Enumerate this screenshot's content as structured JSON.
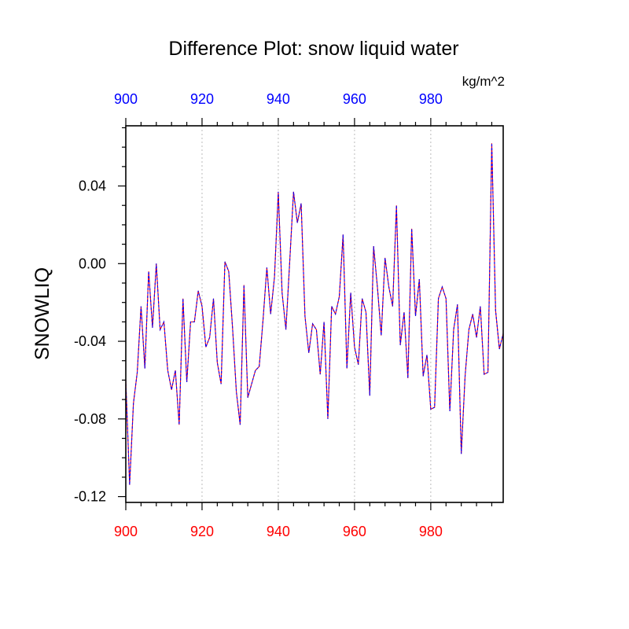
{
  "chart_data": {
    "type": "line",
    "title": "Difference Plot: snow liquid water",
    "units": "kg/m^2",
    "ylabel": "SNOWLIQ",
    "xlabel": "",
    "xlim": [
      900,
      999
    ],
    "ylim": [
      -0.123,
      0.071
    ],
    "x_ticks": [
      900,
      920,
      940,
      960,
      980
    ],
    "x_tick_labels": [
      "900",
      "920",
      "940",
      "960",
      "980"
    ],
    "y_ticks": [
      0.04,
      0.0,
      -0.04,
      -0.08,
      -0.12
    ],
    "y_tick_labels": [
      "0.04",
      "0.00",
      "-0.04",
      "-0.08",
      "-0.12"
    ],
    "grid": "vertical dotted at major x ticks",
    "colors": {
      "top_axis_labels": "#0000ff",
      "bottom_axis_labels": "#ff0000",
      "series_a": "#ff0000",
      "series_b": "#0000ff",
      "grid": "#bbbbbb"
    },
    "series": [
      {
        "color": "#0000ff",
        "x_start": 900,
        "x_step": 1,
        "values": [
          -0.06,
          -0.114,
          -0.072,
          -0.056,
          -0.022,
          -0.054,
          -0.004,
          -0.033,
          0.0,
          -0.034,
          -0.03,
          -0.055,
          -0.065,
          -0.055,
          -0.083,
          -0.018,
          -0.061,
          -0.03,
          -0.03,
          -0.014,
          -0.022,
          -0.043,
          -0.038,
          -0.018,
          -0.051,
          -0.062,
          0.001,
          -0.004,
          -0.033,
          -0.066,
          -0.083,
          -0.011,
          -0.069,
          -0.062,
          -0.055,
          -0.053,
          -0.029,
          -0.002,
          -0.026,
          -0.007,
          0.037,
          -0.015,
          -0.034,
          0.001,
          0.037,
          0.021,
          0.031,
          -0.027,
          -0.046,
          -0.031,
          -0.034,
          -0.057,
          -0.03,
          -0.08,
          -0.022,
          -0.026,
          -0.017,
          0.015,
          -0.054,
          -0.015,
          -0.043,
          -0.052,
          -0.018,
          -0.025,
          -0.068,
          0.009,
          -0.012,
          -0.037,
          0.003,
          -0.012,
          -0.022,
          0.03,
          -0.042,
          -0.025,
          -0.059,
          0.018,
          -0.027,
          -0.008,
          -0.058,
          -0.047,
          -0.075,
          -0.074,
          -0.018,
          -0.012,
          -0.018,
          -0.076,
          -0.034,
          -0.021,
          -0.098,
          -0.058,
          -0.034,
          -0.026,
          -0.038,
          -0.022,
          -0.057,
          -0.056,
          0.062,
          -0.024,
          -0.044,
          -0.036
        ]
      }
    ]
  }
}
